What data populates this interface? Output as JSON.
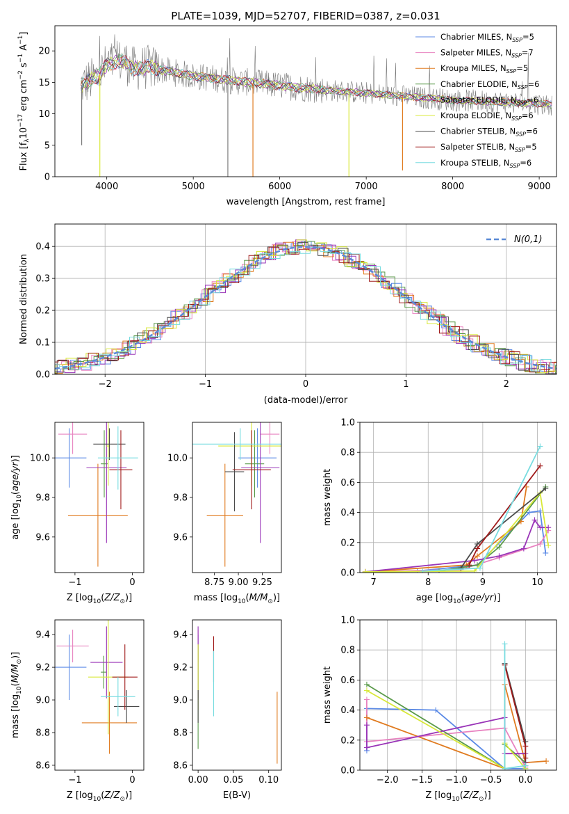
{
  "figure": {
    "title": "PLATE=1039, MJD=52707, FIBERID=0387, z=0.031"
  },
  "colors": {
    "Chabrier MILES": "#5b8ae6",
    "Salpeter MILES": "#e882c0",
    "Kroupa MILES": "#e07b20",
    "Chabrier ELODIE": "#5a9a4a",
    "Salpeter ELODIE": "#9a35b8",
    "Kroupa ELODIE": "#d8e838",
    "Chabrier STELIB": "#4a4a4a",
    "Salpeter STELIB": "#a01a1a",
    "Kroupa STELIB": "#78dce0",
    "data": "#7a7a7a",
    "normal": "#5b8ad6",
    "grid": "#b0b0b0"
  },
  "chart_data": [
    {
      "panel": "spectrum",
      "type": "line",
      "xlabel": "wavelength [Angstrom, rest frame]",
      "ylabel": "Flux [f_λ10^-17 erg cm^-2 s^-1 A^-1]",
      "xlim": [
        3400,
        9200
      ],
      "ylim": [
        0,
        24
      ],
      "xticks": [
        4000,
        5000,
        6000,
        7000,
        8000,
        9000
      ],
      "yticks": [
        0,
        5,
        10,
        15,
        20
      ],
      "grid": false,
      "legend_position": "top-right",
      "legend": [
        {
          "model": "Chabrier MILES",
          "label": "Chabrier MILES, N",
          "sub": "SSP",
          "n": "=5"
        },
        {
          "model": "Salpeter MILES",
          "label": "Salpeter MILES, N",
          "sub": "SSP",
          "n": "=7"
        },
        {
          "model": "Kroupa MILES",
          "label": "Kroupa MILES, N",
          "sub": "SSP",
          "n": "=5"
        },
        {
          "model": "Chabrier ELODIE",
          "label": "Chabrier ELODIE, N",
          "sub": "SSP",
          "n": "=6"
        },
        {
          "model": "Salpeter ELODIE",
          "label": "Salpeter ELODIE, N",
          "sub": "SSP",
          "n": "=6"
        },
        {
          "model": "Kroupa ELODIE",
          "label": "Kroupa ELODIE, N",
          "sub": "SSP",
          "n": "=6"
        },
        {
          "model": "Chabrier STELIB",
          "label": "Chabrier STELIB, N",
          "sub": "SSP",
          "n": "=6"
        },
        {
          "model": "Salpeter STELIB",
          "label": "Salpeter STELIB, N",
          "sub": "SSP",
          "n": "=5"
        },
        {
          "model": "Kroupa STELIB",
          "label": "Kroupa STELIB, N",
          "sub": "SSP",
          "n": "=6"
        }
      ],
      "continuum": [
        [
          3700,
          14.5
        ],
        [
          3800,
          15.2
        ],
        [
          3900,
          16
        ],
        [
          4000,
          17.8
        ],
        [
          4100,
          18.2
        ],
        [
          4200,
          18.4
        ],
        [
          4300,
          17.2
        ],
        [
          4500,
          17.4
        ],
        [
          4800,
          16.5
        ],
        [
          5000,
          16
        ],
        [
          5500,
          15.2
        ],
        [
          6000,
          14.5
        ],
        [
          6500,
          13.8
        ],
        [
          7000,
          13.3
        ],
        [
          7500,
          12.7
        ],
        [
          8000,
          12.2
        ],
        [
          8500,
          11.9
        ],
        [
          9000,
          11.6
        ],
        [
          9150,
          11.5
        ]
      ],
      "dips": [
        {
          "x": 3710,
          "y": 5,
          "model": "data"
        },
        {
          "x": 3920,
          "y": 0,
          "model": "Kroupa ELODIE"
        },
        {
          "x": 5400,
          "y": 0,
          "model": "data"
        },
        {
          "x": 5690,
          "y": 0,
          "model": "Kroupa MILES"
        },
        {
          "x": 6800,
          "y": 0,
          "model": "Kroupa ELODIE"
        },
        {
          "x": 7420,
          "y": 1,
          "model": "Kroupa MILES"
        }
      ]
    },
    {
      "panel": "residuals",
      "type": "line",
      "xlabel": "(data-model)/error",
      "ylabel": "Normed distribution",
      "xlim": [
        -2.5,
        2.5
      ],
      "ylim": [
        0,
        0.47
      ],
      "xticks": [
        -2,
        -1,
        0,
        1,
        2
      ],
      "yticks": [
        0.0,
        0.1,
        0.2,
        0.3,
        0.4
      ],
      "grid": true,
      "legend_position": "top-right",
      "legend_label": "N(0,1)",
      "bin_width": 0.1
    },
    {
      "panel": "age_vs_Z",
      "type": "scatter",
      "xlabel": "Z [log10(Z/Z⊙)]",
      "ylabel": "age  [log10(age/yr)]",
      "xlim": [
        -1.35,
        0.2
      ],
      "ylim": [
        9.42,
        10.18
      ],
      "xticks": [
        -1,
        0
      ],
      "yticks": [
        9.6,
        9.8,
        10.0
      ],
      "points": [
        {
          "model": "Chabrier MILES",
          "x": -1.1,
          "xerr": 0.3,
          "y": 10.0,
          "yerr": 0.15
        },
        {
          "model": "Salpeter MILES",
          "x": -1.04,
          "xerr": 0.25,
          "y": 10.12,
          "yerr": 0.1
        },
        {
          "model": "Kroupa MILES",
          "x": -0.6,
          "xerr": 0.52,
          "y": 9.71,
          "yerr": 0.26
        },
        {
          "model": "Chabrier ELODIE",
          "x": -0.49,
          "xerr": 0.06,
          "y": 9.97,
          "yerr": 0.17
        },
        {
          "model": "Salpeter ELODIE",
          "x": -0.45,
          "xerr": 0.35,
          "y": 9.95,
          "yerr": 0.38
        },
        {
          "model": "Kroupa ELODIE",
          "x": -0.42,
          "xerr": 0.03,
          "y": 10.06,
          "yerr": 0.2
        },
        {
          "model": "Chabrier STELIB",
          "x": -0.4,
          "xerr": 0.28,
          "y": 10.07,
          "yerr": 0.08
        },
        {
          "model": "Salpeter STELIB",
          "x": -0.2,
          "xerr": 0.2,
          "y": 9.94,
          "yerr": 0.2
        },
        {
          "model": "Kroupa STELIB",
          "x": -0.25,
          "xerr": 0.35,
          "y": 10.0,
          "yerr": 0.16
        }
      ]
    },
    {
      "panel": "age_vs_mass",
      "type": "scatter",
      "xlabel": "mass [log10(M/M⊙)]",
      "ylabel": "",
      "xlim": [
        8.52,
        9.45
      ],
      "ylim": [
        9.42,
        10.18
      ],
      "xticks": [
        8.75,
        9.0,
        9.25
      ],
      "xticklabels": [
        "8.75",
        "9.00",
        "9.25"
      ],
      "yticks": [
        9.6,
        9.8,
        10.0
      ],
      "points": [
        {
          "model": "Chabrier MILES",
          "x": 9.2,
          "xerr": 0.2,
          "y": 10.0,
          "yerr": 0.15
        },
        {
          "model": "Salpeter MILES",
          "x": 9.33,
          "xerr": 0.1,
          "y": 10.12,
          "yerr": 0.1
        },
        {
          "model": "Kroupa MILES",
          "x": 8.86,
          "xerr": 0.19,
          "y": 9.71,
          "yerr": 0.26
        },
        {
          "model": "Chabrier ELODIE",
          "x": 9.17,
          "xerr": 0.1,
          "y": 9.97,
          "yerr": 0.17
        },
        {
          "model": "Salpeter ELODIE",
          "x": 9.23,
          "xerr": 0.2,
          "y": 9.95,
          "yerr": 0.38
        },
        {
          "model": "Kroupa ELODIE",
          "x": 9.14,
          "xerr": 0.35,
          "y": 10.06,
          "yerr": 0.2
        },
        {
          "model": "Chabrier STELIB",
          "x": 8.96,
          "xerr": 0.1,
          "y": 9.93,
          "yerr": 0.2
        },
        {
          "model": "Salpeter STELIB",
          "x": 9.14,
          "xerr": 0.2,
          "y": 9.94,
          "yerr": 0.2
        },
        {
          "model": "Kroupa STELIB",
          "x": 9.02,
          "xerr": 0.5,
          "y": 10.07,
          "yerr": 0.08
        }
      ]
    },
    {
      "panel": "massweight_vs_age",
      "type": "line",
      "xlabel": "age  [log10(age/yr)]",
      "ylabel": "mass weight",
      "xlim": [
        6.75,
        10.35
      ],
      "ylim": [
        0,
        1.0
      ],
      "xticks": [
        7,
        8,
        9,
        10
      ],
      "yticks": [
        0.0,
        0.2,
        0.4,
        0.6,
        0.8,
        1.0
      ],
      "grid": true,
      "series": [
        {
          "model": "Chabrier MILES",
          "x": [
            7.8,
            8.9,
            9.85,
            10.05,
            10.15
          ],
          "y": [
            0.01,
            0.05,
            0.4,
            0.41,
            0.13
          ]
        },
        {
          "model": "Salpeter MILES",
          "x": [
            6.85,
            8.6,
            9.3,
            10.05,
            10.2
          ],
          "y": [
            0.005,
            0.02,
            0.1,
            0.19,
            0.28
          ]
        },
        {
          "model": "Kroupa MILES",
          "x": [
            6.85,
            8.7,
            8.9,
            9.7,
            9.8
          ],
          "y": [
            0.005,
            0.05,
            0.11,
            0.34,
            0.57
          ]
        },
        {
          "model": "Chabrier ELODIE",
          "x": [
            8.2,
            8.9,
            9.3,
            10.15
          ],
          "y": [
            0.01,
            0.05,
            0.17,
            0.57
          ]
        },
        {
          "model": "Salpeter ELODIE",
          "x": [
            6.85,
            8.85,
            9.3,
            9.75,
            9.95,
            10.05,
            10.2
          ],
          "y": [
            0.005,
            0.08,
            0.11,
            0.16,
            0.35,
            0.3,
            0.3
          ]
        },
        {
          "model": "Kroupa ELODIE",
          "x": [
            6.85,
            8.85,
            10.05,
            10.2
          ],
          "y": [
            0.005,
            0.01,
            0.53,
            0.18
          ]
        },
        {
          "model": "Chabrier STELIB",
          "x": [
            8.6,
            8.9,
            10.15
          ],
          "y": [
            0.03,
            0.19,
            0.56
          ]
        },
        {
          "model": "Salpeter STELIB",
          "x": [
            8.75,
            8.9,
            10.05
          ],
          "y": [
            0.05,
            0.16,
            0.71
          ]
        },
        {
          "model": "Kroupa STELIB",
          "x": [
            7.9,
            8.95,
            10.05
          ],
          "y": [
            0.01,
            0.03,
            0.84
          ]
        }
      ]
    },
    {
      "panel": "mass_vs_Z",
      "type": "scatter",
      "xlabel": "Z [log10(Z/Z⊙)]",
      "ylabel": "mass [log10(M/M⊙)]",
      "xlim": [
        -1.35,
        0.2
      ],
      "ylim": [
        8.57,
        9.49
      ],
      "xticks": [
        -1,
        0
      ],
      "yticks": [
        8.6,
        8.8,
        9.0,
        9.2,
        9.4
      ],
      "points": [
        {
          "model": "Chabrier MILES",
          "x": -1.1,
          "xerr": 0.3,
          "y": 9.2,
          "yerr": 0.2
        },
        {
          "model": "Salpeter MILES",
          "x": -1.04,
          "xerr": 0.28,
          "y": 9.33,
          "yerr": 0.1
        },
        {
          "model": "Kroupa MILES",
          "x": -0.4,
          "xerr": 0.48,
          "y": 8.86,
          "yerr": 0.19
        },
        {
          "model": "Chabrier ELODIE",
          "x": -0.5,
          "xerr": 0.05,
          "y": 9.17,
          "yerr": 0.1
        },
        {
          "model": "Salpeter ELODIE",
          "x": -0.45,
          "xerr": 0.28,
          "y": 9.23,
          "yerr": 0.22
        },
        {
          "model": "Kroupa ELODIE",
          "x": -0.42,
          "xerr": 0.35,
          "y": 9.14,
          "yerr": 0.35
        },
        {
          "model": "Chabrier STELIB",
          "x": -0.1,
          "xerr": 0.22,
          "y": 8.96,
          "yerr": 0.1
        },
        {
          "model": "Salpeter STELIB",
          "x": -0.13,
          "xerr": 0.22,
          "y": 9.14,
          "yerr": 0.2
        },
        {
          "model": "Kroupa STELIB",
          "x": -0.25,
          "xerr": 0.3,
          "y": 9.02,
          "yerr": 0.12
        }
      ]
    },
    {
      "panel": "mass_vs_EBV",
      "type": "scatter",
      "xlabel": "E(B-V)",
      "ylabel": "",
      "xlim": [
        -0.008,
        0.118
      ],
      "ylim": [
        8.57,
        9.49
      ],
      "xticks": [
        0.0,
        0.05,
        0.1
      ],
      "xticklabels": [
        "0.00",
        "0.05",
        "0.10"
      ],
      "yticks": [
        8.6,
        8.8,
        9.0,
        9.2,
        9.4
      ],
      "points": [
        {
          "model": "Chabrier MILES",
          "x": 0.0,
          "xerr": 0,
          "y": 9.2,
          "yerr": 0.2
        },
        {
          "model": "Salpeter MILES",
          "x": 0.0,
          "xerr": 0,
          "y": 9.33,
          "yerr": 0.1
        },
        {
          "model": "Kroupa MILES",
          "x": 0.112,
          "xerr": 0,
          "y": 8.83,
          "yerr": 0.22
        },
        {
          "model": "Chabrier ELODIE",
          "x": 0.0,
          "xerr": 0,
          "y": 9.02,
          "yerr": 0.32
        },
        {
          "model": "Salpeter ELODIE",
          "x": 0.0,
          "xerr": 0,
          "y": 9.23,
          "yerr": 0.22
        },
        {
          "model": "Kroupa ELODIE",
          "x": 0.0,
          "xerr": 0,
          "y": 9.14,
          "yerr": 0.2
        },
        {
          "model": "Chabrier STELIB",
          "x": 0.0,
          "xerr": 0,
          "y": 8.96,
          "yerr": 0.1
        },
        {
          "model": "Salpeter STELIB",
          "x": 0.022,
          "xerr": 0,
          "y": 9.25,
          "yerr": 0.14
        },
        {
          "model": "Kroupa STELIB",
          "x": 0.022,
          "xerr": 0,
          "y": 9.1,
          "yerr": 0.2
        }
      ]
    },
    {
      "panel": "massweight_vs_Z",
      "type": "line",
      "xlabel": "Z [log10(Z/Z⊙)]",
      "ylabel": "mass weight",
      "xlim": [
        -2.4,
        0.45
      ],
      "ylim": [
        0,
        1.0
      ],
      "xticks": [
        -2.0,
        -1.5,
        -1.0,
        -0.5,
        0.0
      ],
      "xticklabels": [
        "−2.0",
        "−1.5",
        "−1.0",
        "−0.5",
        "0.0"
      ],
      "yticks": [
        0.0,
        0.2,
        0.4,
        0.6,
        0.8,
        1.0
      ],
      "grid": true,
      "series": [
        {
          "model": "Chabrier MILES",
          "x": [
            -2.3,
            -2.3,
            -1.3,
            -0.3,
            0.0
          ],
          "y": [
            0.13,
            0.41,
            0.4,
            0.01,
            0.01
          ]
        },
        {
          "model": "Salpeter MILES",
          "x": [
            -2.3,
            -2.3,
            -0.3,
            0.0
          ],
          "y": [
            0.47,
            0.19,
            0.28,
            0.02
          ]
        },
        {
          "model": "Kroupa MILES",
          "x": [
            -2.3,
            -0.3,
            -0.3,
            0.0,
            0.3
          ],
          "y": [
            0.35,
            0.01,
            0.57,
            0.05,
            0.06
          ]
        },
        {
          "model": "Chabrier ELODIE",
          "x": [
            -2.3,
            -0.3,
            -0.3,
            0.0
          ],
          "y": [
            0.57,
            0.01,
            0.17,
            0.05
          ]
        },
        {
          "model": "Salpeter ELODIE",
          "x": [
            -2.3,
            -2.3,
            -0.3,
            -0.3,
            0.0,
            0.0
          ],
          "y": [
            0.3,
            0.15,
            0.35,
            0.11,
            0.11,
            0.05
          ]
        },
        {
          "model": "Kroupa ELODIE",
          "x": [
            -2.3,
            -0.3,
            -0.3,
            0.0
          ],
          "y": [
            0.53,
            0.01,
            0.18,
            0.01
          ]
        },
        {
          "model": "Chabrier STELIB",
          "x": [
            -0.3,
            0.0,
            0.0
          ],
          "y": [
            0.71,
            0.19,
            0.03
          ]
        },
        {
          "model": "Salpeter STELIB",
          "x": [
            -0.3,
            0.0,
            0.0
          ],
          "y": [
            0.7,
            0.16,
            0.08
          ]
        },
        {
          "model": "Kroupa STELIB",
          "x": [
            -0.3,
            -0.3,
            0.0
          ],
          "y": [
            0.84,
            0.01,
            0.03
          ]
        }
      ]
    }
  ]
}
